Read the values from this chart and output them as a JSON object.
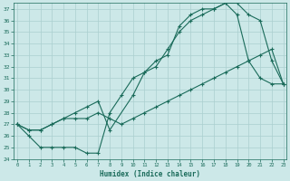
{
  "xlabel": "Humidex (Indice chaleur)",
  "xlim": [
    0,
    23
  ],
  "ylim": [
    24,
    37.5
  ],
  "yticks": [
    24,
    25,
    26,
    27,
    28,
    29,
    30,
    31,
    32,
    33,
    34,
    35,
    36,
    37
  ],
  "xticks": [
    0,
    1,
    2,
    3,
    4,
    5,
    6,
    7,
    8,
    9,
    10,
    11,
    12,
    13,
    14,
    15,
    16,
    17,
    18,
    19,
    20,
    21,
    22,
    23
  ],
  "background_color": "#cce8e8",
  "grid_color": "#aacfcf",
  "line_color": "#1a6b5a",
  "line1_x": [
    0,
    1,
    2,
    3,
    4,
    5,
    6,
    7,
    8,
    9,
    10,
    11,
    12,
    13,
    14,
    15,
    16,
    17,
    18,
    19,
    20,
    21,
    22,
    23
  ],
  "line1_y": [
    27.0,
    26.0,
    25.0,
    25.0,
    25.0,
    25.0,
    24.5,
    24.5,
    28.0,
    29.5,
    31.0,
    31.5,
    32.5,
    33.0,
    35.5,
    36.5,
    37.0,
    37.0,
    37.5,
    36.5,
    32.5,
    31.0,
    30.5,
    30.5
  ],
  "line2_x": [
    0,
    1,
    2,
    3,
    4,
    5,
    6,
    7,
    8,
    10,
    11,
    12,
    13,
    14,
    15,
    16,
    17,
    18,
    19,
    20,
    21,
    22,
    23
  ],
  "line2_y": [
    27.0,
    26.5,
    26.5,
    27.0,
    27.5,
    28.0,
    28.5,
    29.0,
    26.5,
    29.5,
    31.5,
    32.0,
    33.5,
    35.0,
    36.0,
    36.5,
    37.0,
    37.5,
    37.5,
    36.5,
    36.0,
    32.5,
    30.5
  ],
  "line3_x": [
    0,
    1,
    2,
    3,
    4,
    5,
    6,
    7,
    8,
    9,
    10,
    11,
    12,
    13,
    14,
    15,
    16,
    17,
    18,
    19,
    20,
    21,
    22,
    23
  ],
  "line3_y": [
    27.0,
    26.5,
    26.5,
    27.0,
    27.5,
    27.5,
    27.5,
    28.0,
    27.5,
    27.0,
    27.5,
    28.0,
    28.5,
    29.0,
    29.5,
    30.0,
    30.5,
    31.0,
    31.5,
    32.0,
    32.5,
    33.0,
    33.5,
    30.5
  ]
}
